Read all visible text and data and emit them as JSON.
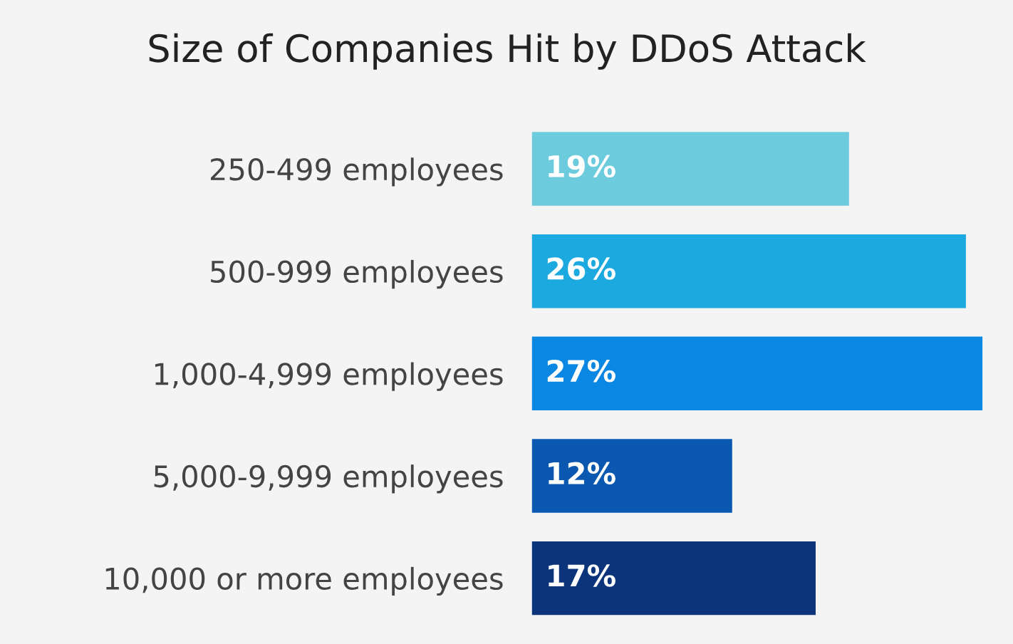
{
  "chart_data": {
    "type": "bar",
    "orientation": "horizontal",
    "title": "Size of Companies Hit by DDoS Attack",
    "categories": [
      "250-499 employees",
      "500-999 employees",
      "1,000-4,999 employees",
      "5,000-9,999 employees",
      "10,000 or more employees"
    ],
    "values": [
      19,
      26,
      27,
      12,
      17
    ],
    "value_labels": [
      "19%",
      "26%",
      "27%",
      "12%",
      "17%"
    ],
    "colors": [
      "#6ccbdc",
      "#1ba9e0",
      "#0a86e3",
      "#0a58b0",
      "#0c347a"
    ],
    "grid": false,
    "legend": false
  }
}
